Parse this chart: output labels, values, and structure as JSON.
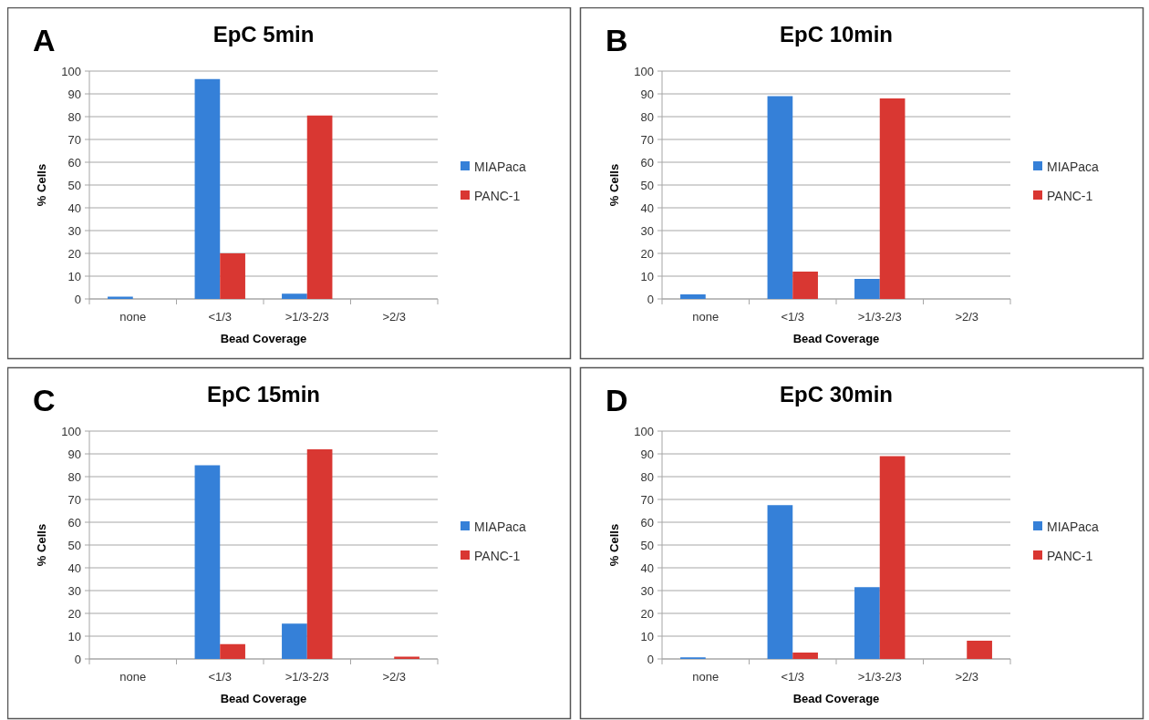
{
  "chart_data": [
    {
      "type": "bar",
      "title": "EpC 5min",
      "annotations": [
        "A"
      ],
      "xlabel": "Bead Coverage",
      "ylabel": "% Cells",
      "categories": [
        "none",
        "<1/3",
        ">1/3-2/3",
        ">2/3"
      ],
      "ylim": [
        0,
        100
      ],
      "yticks": [
        0,
        10,
        20,
        30,
        40,
        50,
        60,
        70,
        80,
        90,
        100
      ],
      "grid": "y",
      "legend": "right",
      "series": [
        {
          "name": "MIAPaca",
          "color": "#3580d8",
          "values": [
            1,
            96.5,
            2.3,
            0
          ]
        },
        {
          "name": "PANC-1",
          "color": "#d93732",
          "values": [
            0,
            20,
            80.5,
            0
          ]
        }
      ]
    },
    {
      "type": "bar",
      "title": "EpC 10min",
      "annotations": [
        "B"
      ],
      "xlabel": "Bead Coverage",
      "ylabel": "% Cells",
      "categories": [
        "none",
        "<1/3",
        ">1/3-2/3",
        ">2/3"
      ],
      "ylim": [
        0,
        100
      ],
      "yticks": [
        0,
        10,
        20,
        30,
        40,
        50,
        60,
        70,
        80,
        90,
        100
      ],
      "grid": "y",
      "legend": "right",
      "series": [
        {
          "name": "MIAPaca",
          "color": "#3580d8",
          "values": [
            2,
            89,
            8.8,
            0
          ]
        },
        {
          "name": "PANC-1",
          "color": "#d93732",
          "values": [
            0,
            12,
            88,
            0
          ]
        }
      ]
    },
    {
      "type": "bar",
      "title": "EpC 15min",
      "annotations": [
        "C"
      ],
      "xlabel": "Bead Coverage",
      "ylabel": "% Cells",
      "categories": [
        "none",
        "<1/3",
        ">1/3-2/3",
        ">2/3"
      ],
      "ylim": [
        0,
        100
      ],
      "yticks": [
        0,
        10,
        20,
        30,
        40,
        50,
        60,
        70,
        80,
        90,
        100
      ],
      "grid": "y",
      "legend": "right",
      "series": [
        {
          "name": "MIAPaca",
          "color": "#3580d8",
          "values": [
            0,
            85,
            15.5,
            0
          ]
        },
        {
          "name": "PANC-1",
          "color": "#d93732",
          "values": [
            0,
            6.5,
            92,
            1
          ]
        }
      ]
    },
    {
      "type": "bar",
      "title": "EpC 30min",
      "annotations": [
        "D"
      ],
      "xlabel": "Bead Coverage",
      "ylabel": "% Cells",
      "categories": [
        "none",
        "<1/3",
        ">1/3-2/3",
        ">2/3"
      ],
      "ylim": [
        0,
        100
      ],
      "yticks": [
        0,
        10,
        20,
        30,
        40,
        50,
        60,
        70,
        80,
        90,
        100
      ],
      "grid": "y",
      "legend": "right",
      "series": [
        {
          "name": "MIAPaca",
          "color": "#3580d8",
          "values": [
            0.7,
            67.5,
            31.5,
            0
          ]
        },
        {
          "name": "PANC-1",
          "color": "#d93732",
          "values": [
            0,
            2.8,
            89,
            8
          ]
        }
      ]
    }
  ]
}
